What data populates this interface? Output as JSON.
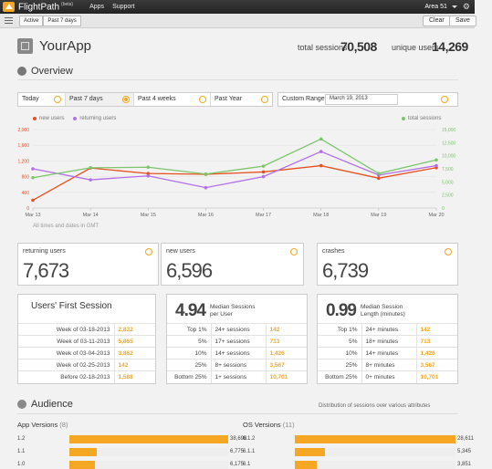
{
  "topbar": {
    "brand": "FlightPath",
    "beta": "(beta)",
    "menu": [
      "Apps",
      "Support"
    ],
    "account": "Area 51"
  },
  "filters": {
    "chips": [
      "Active",
      "Past 7 days"
    ],
    "clear": "Clear",
    "save": "Save"
  },
  "header": {
    "app_name": "YourApp",
    "total_sessions_label": "total sessions",
    "total_sessions": "70,508",
    "unique_users_label": "unique users",
    "unique_users": "14,269"
  },
  "overview": {
    "title": "Overview",
    "ranges": [
      "Today",
      "Past 7 days",
      "Past 4 weeks",
      "Past Year"
    ],
    "selected_range": "Past 7 days",
    "custom_label": "Custom Range",
    "custom_date": "March 19, 2013",
    "note": "All times and dates in GMT"
  },
  "chart_data": {
    "type": "line",
    "x": [
      "Mar 13",
      "Mar 14",
      "Mar 15",
      "Mar 16",
      "Mar 17",
      "Mar 18",
      "Mar 19",
      "Mar 20"
    ],
    "series": [
      {
        "name": "new users",
        "axis": "left",
        "color": "#e8501e",
        "values": [
          200,
          1020,
          880,
          860,
          920,
          1080,
          760,
          1030
        ]
      },
      {
        "name": "returning users",
        "axis": "left",
        "color": "#b36fe6",
        "values": [
          1000,
          720,
          820,
          520,
          800,
          1440,
          840,
          1080
        ]
      },
      {
        "name": "total sessions",
        "axis": "right",
        "color": "#7cc56a",
        "values": [
          5800,
          7700,
          7800,
          6500,
          8000,
          13200,
          6600,
          9200
        ]
      }
    ],
    "y_left_ticks": [
      "0",
      "400",
      "800",
      "1,200",
      "1,600",
      "2,000"
    ],
    "y_left_range": [
      0,
      2000
    ],
    "y_right_ticks": [
      "0",
      "2,500",
      "5,000",
      "7,500",
      "10,000",
      "12,500",
      "15,000"
    ],
    "y_right_range": [
      0,
      15000
    ],
    "legend_left": [
      "new users",
      "returning users"
    ],
    "legend_right": "total sessions",
    "grid": true
  },
  "stats": [
    {
      "label": "returning users",
      "value": "7,673"
    },
    {
      "label": "new users",
      "value": "6,596"
    },
    {
      "label": "crashes",
      "value": "6,739"
    }
  ],
  "first_session": {
    "title": "Users' First Session",
    "rows": [
      {
        "label": "Week of 03-18-2013",
        "value": "2,832"
      },
      {
        "label": "Week of 03-11-2013",
        "value": "5,865"
      },
      {
        "label": "Week of 03-04-2013",
        "value": "3,862"
      },
      {
        "label": "Week of 02-25-2013",
        "value": "142"
      },
      {
        "label": "Before 02-18-2013",
        "value": "1,588"
      }
    ]
  },
  "median_sessions": {
    "big": "4.94",
    "sub1": "Median Sessions",
    "sub2": "per User",
    "rows": [
      {
        "pct": "Top 1%",
        "metric": "24+ sessions",
        "value": "142"
      },
      {
        "pct": "5%",
        "metric": "17+ sessions",
        "value": "713"
      },
      {
        "pct": "10%",
        "metric": "14+ sessions",
        "value": "1,426"
      },
      {
        "pct": "25%",
        "metric": "8+ sessions",
        "value": "3,567"
      },
      {
        "pct": "Bottom 25%",
        "metric": "1+ sessions",
        "value": "10,701"
      }
    ]
  },
  "median_length": {
    "big": "0.99",
    "sub1": "Median Session",
    "sub2": "Length (minutes)",
    "rows": [
      {
        "pct": "Top 1%",
        "metric": "24+ minutes",
        "value": "142"
      },
      {
        "pct": "5%",
        "metric": "18+ minutes",
        "value": "713"
      },
      {
        "pct": "10%",
        "metric": "14+ minutes",
        "value": "1,426"
      },
      {
        "pct": "25%",
        "metric": "8+ minutes",
        "value": "3,567"
      },
      {
        "pct": "Bottom 25%",
        "metric": "0+ minutes",
        "value": "10,701"
      }
    ]
  },
  "audience": {
    "title": "Audience",
    "note": "Distribution of sessions over various attributes",
    "app_versions": {
      "title": "App Versions",
      "count": "(8)",
      "max": 38698,
      "items": [
        {
          "label": "1.2",
          "value": 38698,
          "display": "38,698"
        },
        {
          "label": "1.1",
          "value": 6775,
          "display": "6,775"
        },
        {
          "label": "1.0",
          "value": 6175,
          "display": "6,175"
        }
      ]
    },
    "os_versions": {
      "title": "OS Versions",
      "count": "(11)",
      "max": 28611,
      "items": [
        {
          "label": "6.1.2",
          "value": 28611,
          "display": "28,611"
        },
        {
          "label": "6.1.1",
          "value": 5345,
          "display": "5,345"
        },
        {
          "label": "6.1",
          "value": 3851,
          "display": "3,851"
        }
      ]
    }
  }
}
